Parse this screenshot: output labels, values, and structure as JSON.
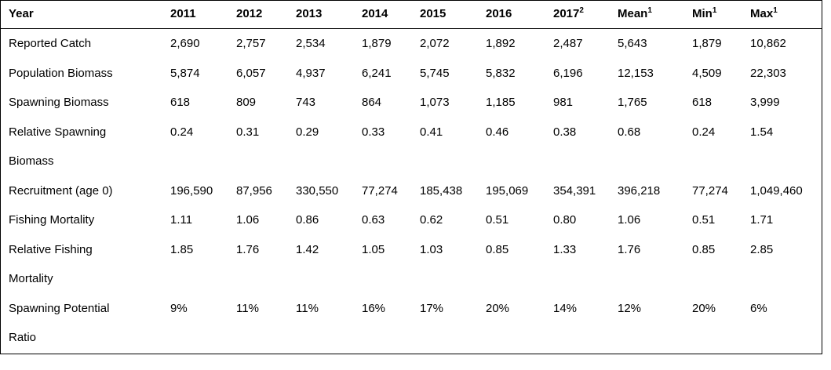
{
  "table": {
    "headers": [
      {
        "text": "Year",
        "sup": ""
      },
      {
        "text": "2011",
        "sup": ""
      },
      {
        "text": "2012",
        "sup": ""
      },
      {
        "text": "2013",
        "sup": ""
      },
      {
        "text": "2014",
        "sup": ""
      },
      {
        "text": "2015",
        "sup": ""
      },
      {
        "text": "2016",
        "sup": ""
      },
      {
        "text": "2017",
        "sup": "2"
      },
      {
        "text": "Mean",
        "sup": "1"
      },
      {
        "text": "Min",
        "sup": "1"
      },
      {
        "text": "Max",
        "sup": "1"
      }
    ],
    "rows": [
      {
        "label": "Reported Catch",
        "cells": [
          "2,690",
          "2,757",
          "2,534",
          "1,879",
          "2,072",
          "1,892",
          "2,487",
          "5,643",
          "1,879",
          "10,862"
        ]
      },
      {
        "label": "Population Biomass",
        "cells": [
          "5,874",
          "6,057",
          "4,937",
          "6,241",
          "5,745",
          "5,832",
          "6,196",
          "12,153",
          "4,509",
          "22,303"
        ]
      },
      {
        "label": "Spawning Biomass",
        "cells": [
          "618",
          "809",
          "743",
          "864",
          "1,073",
          "1,185",
          "981",
          "1,765",
          "618",
          "3,999"
        ]
      },
      {
        "label": "Relative Spawning Biomass",
        "cells": [
          "0.24",
          "0.31",
          "0.29",
          "0.33",
          "0.41",
          "0.46",
          "0.38",
          "0.68",
          "0.24",
          "1.54"
        ]
      },
      {
        "label": "Recruitment (age 0)",
        "cells": [
          "196,590",
          "87,956",
          "330,550",
          "77,274",
          "185,438",
          "195,069",
          "354,391",
          "396,218",
          "77,274",
          "1,049,460"
        ]
      },
      {
        "label": "Fishing Mortality",
        "cells": [
          "1.11",
          "1.06",
          "0.86",
          "0.63",
          "0.62",
          "0.51",
          "0.80",
          "1.06",
          "0.51",
          "1.71"
        ]
      },
      {
        "label": "Relative Fishing Mortality",
        "cells": [
          "1.85",
          "1.76",
          "1.42",
          "1.05",
          "1.03",
          "0.85",
          "1.33",
          "1.76",
          "0.85",
          "2.85"
        ]
      },
      {
        "label": "Spawning Potential Ratio",
        "cells": [
          "9%",
          "11%",
          "11%",
          "16%",
          "17%",
          "20%",
          "14%",
          "12%",
          "20%",
          "6%"
        ]
      }
    ]
  }
}
